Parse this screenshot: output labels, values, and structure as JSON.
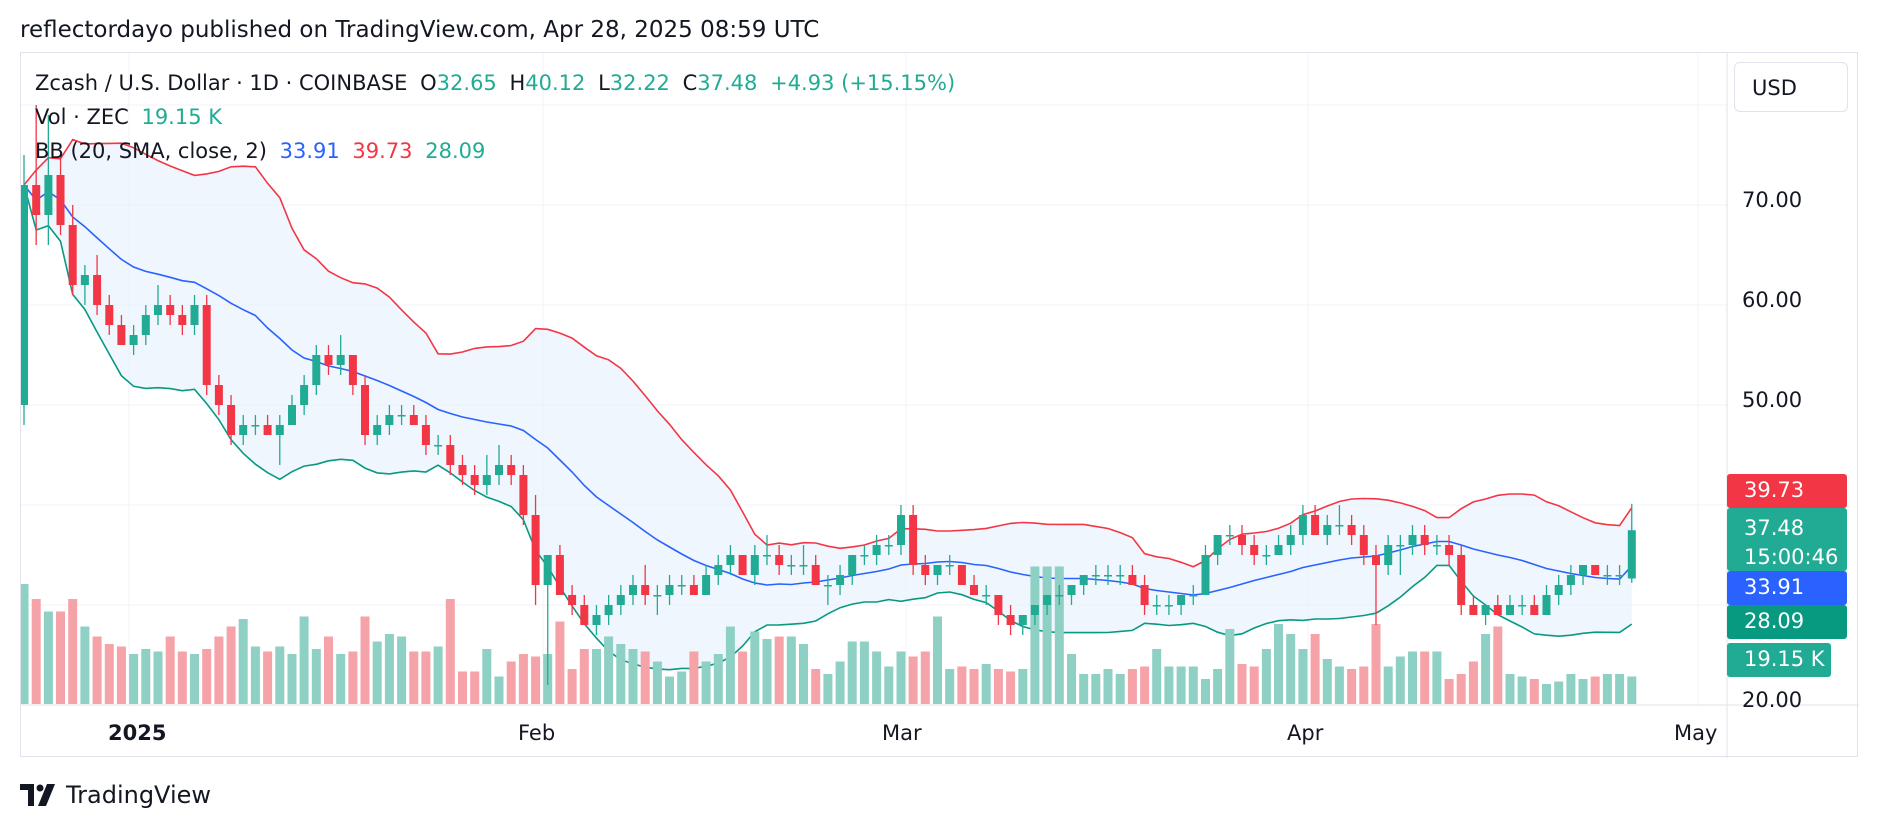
{
  "attribution": "reflectordayo published on TradingView.com, Apr 28, 2025 08:59 UTC",
  "brand": "TradingView",
  "currency_button": "USD",
  "legend": {
    "symbol": "Zcash / U.S. Dollar · 1D · COINBASE",
    "o_label": "O",
    "o": "32.65",
    "h_label": "H",
    "h": "40.12",
    "l_label": "L",
    "l": "32.22",
    "c_label": "C",
    "c": "37.48",
    "change": "+4.93 (+15.15%)",
    "vol_label": "Vol · ZEC",
    "vol": "19.15 K",
    "bb_label": "BB (20, SMA, close, 2)",
    "bb_basis": "33.91",
    "bb_upper": "39.73",
    "bb_lower": "28.09"
  },
  "price_axis": [
    "70.00",
    "60.00",
    "50.00",
    "20.00"
  ],
  "price_tags": {
    "upper": "39.73",
    "last_price": "37.48",
    "countdown": "15:00:46",
    "basis": "33.91",
    "lower": "28.09",
    "volume": "19.15 K"
  },
  "time_axis": [
    "2025",
    "Feb",
    "Mar",
    "Apr",
    "May"
  ],
  "colors": {
    "up": "#22ab94",
    "down": "#f23645",
    "basis": "#2962ff",
    "band_fill": "#e3eefb",
    "vol_up": "#8fd0c5",
    "vol_down": "#f5a2a8"
  },
  "chart_data": {
    "type": "candlestick",
    "ylim": [
      20,
      77
    ],
    "start_date": "2024-12-16",
    "candles": [
      {
        "o": 50,
        "h": 75,
        "l": 48,
        "c": 72
      },
      {
        "o": 72,
        "h": 80,
        "l": 66,
        "c": 69
      },
      {
        "o": 69,
        "h": 79,
        "l": 66,
        "c": 73
      },
      {
        "o": 73,
        "h": 75,
        "l": 67,
        "c": 68
      },
      {
        "o": 68,
        "h": 70,
        "l": 61,
        "c": 62
      },
      {
        "o": 62,
        "h": 64,
        "l": 60,
        "c": 63
      },
      {
        "o": 63,
        "h": 65,
        "l": 59,
        "c": 60
      },
      {
        "o": 60,
        "h": 61,
        "l": 57,
        "c": 58
      },
      {
        "o": 58,
        "h": 59,
        "l": 56,
        "c": 56
      },
      {
        "o": 56,
        "h": 58,
        "l": 55,
        "c": 57
      },
      {
        "o": 57,
        "h": 60,
        "l": 56,
        "c": 59
      },
      {
        "o": 59,
        "h": 62,
        "l": 58,
        "c": 60
      },
      {
        "o": 60,
        "h": 61,
        "l": 58,
        "c": 59
      },
      {
        "o": 59,
        "h": 60,
        "l": 57,
        "c": 58
      },
      {
        "o": 58,
        "h": 61,
        "l": 57,
        "c": 60
      },
      {
        "o": 60,
        "h": 61,
        "l": 51,
        "c": 52
      },
      {
        "o": 52,
        "h": 53,
        "l": 49,
        "c": 50
      },
      {
        "o": 50,
        "h": 51,
        "l": 46,
        "c": 47
      },
      {
        "o": 47,
        "h": 49,
        "l": 46,
        "c": 48
      },
      {
        "o": 48,
        "h": 49,
        "l": 47,
        "c": 48
      },
      {
        "o": 48,
        "h": 49,
        "l": 47,
        "c": 47
      },
      {
        "o": 47,
        "h": 49,
        "l": 44,
        "c": 48
      },
      {
        "o": 48,
        "h": 51,
        "l": 48,
        "c": 50
      },
      {
        "o": 50,
        "h": 53,
        "l": 49,
        "c": 52
      },
      {
        "o": 52,
        "h": 56,
        "l": 51,
        "c": 55
      },
      {
        "o": 55,
        "h": 56,
        "l": 53,
        "c": 54
      },
      {
        "o": 54,
        "h": 57,
        "l": 53,
        "c": 55
      },
      {
        "o": 55,
        "h": 55,
        "l": 51,
        "c": 52
      },
      {
        "o": 52,
        "h": 53,
        "l": 46,
        "c": 47
      },
      {
        "o": 47,
        "h": 49,
        "l": 46,
        "c": 48
      },
      {
        "o": 48,
        "h": 50,
        "l": 47,
        "c": 49
      },
      {
        "o": 49,
        "h": 50,
        "l": 48,
        "c": 49
      },
      {
        "o": 49,
        "h": 50,
        "l": 48,
        "c": 48
      },
      {
        "o": 48,
        "h": 49,
        "l": 45,
        "c": 46
      },
      {
        "o": 46,
        "h": 47,
        "l": 45,
        "c": 46
      },
      {
        "o": 46,
        "h": 47,
        "l": 43,
        "c": 44
      },
      {
        "o": 44,
        "h": 45,
        "l": 42,
        "c": 43
      },
      {
        "o": 43,
        "h": 44,
        "l": 41,
        "c": 42
      },
      {
        "o": 42,
        "h": 45,
        "l": 41,
        "c": 43
      },
      {
        "o": 43,
        "h": 46,
        "l": 42,
        "c": 44
      },
      {
        "o": 44,
        "h": 45,
        "l": 42,
        "c": 43
      },
      {
        "o": 43,
        "h": 44,
        "l": 38,
        "c": 39
      },
      {
        "o": 39,
        "h": 41,
        "l": 30,
        "c": 32
      },
      {
        "o": 32,
        "h": 35,
        "l": 22,
        "c": 35
      },
      {
        "o": 35,
        "h": 36,
        "l": 31,
        "c": 31
      },
      {
        "o": 31,
        "h": 32,
        "l": 29,
        "c": 30
      },
      {
        "o": 30,
        "h": 31,
        "l": 28,
        "c": 28
      },
      {
        "o": 28,
        "h": 30,
        "l": 27,
        "c": 29
      },
      {
        "o": 29,
        "h": 31,
        "l": 28,
        "c": 30
      },
      {
        "o": 30,
        "h": 32,
        "l": 29,
        "c": 31
      },
      {
        "o": 31,
        "h": 33,
        "l": 30,
        "c": 32
      },
      {
        "o": 32,
        "h": 34,
        "l": 30,
        "c": 31
      },
      {
        "o": 31,
        "h": 32,
        "l": 29,
        "c": 31
      },
      {
        "o": 31,
        "h": 33,
        "l": 30,
        "c": 32
      },
      {
        "o": 32,
        "h": 33,
        "l": 31,
        "c": 32
      },
      {
        "o": 32,
        "h": 33,
        "l": 31,
        "c": 31
      },
      {
        "o": 31,
        "h": 34,
        "l": 31,
        "c": 33
      },
      {
        "o": 33,
        "h": 35,
        "l": 32,
        "c": 34
      },
      {
        "o": 34,
        "h": 36,
        "l": 33,
        "c": 35
      },
      {
        "o": 35,
        "h": 35,
        "l": 33,
        "c": 33
      },
      {
        "o": 33,
        "h": 36,
        "l": 32,
        "c": 35
      },
      {
        "o": 35,
        "h": 37,
        "l": 34,
        "c": 35
      },
      {
        "o": 35,
        "h": 36,
        "l": 33,
        "c": 34
      },
      {
        "o": 34,
        "h": 35,
        "l": 33,
        "c": 34
      },
      {
        "o": 34,
        "h": 36,
        "l": 33,
        "c": 34
      },
      {
        "o": 34,
        "h": 35,
        "l": 32,
        "c": 32
      },
      {
        "o": 32,
        "h": 33,
        "l": 30,
        "c": 32
      },
      {
        "o": 32,
        "h": 34,
        "l": 31,
        "c": 33
      },
      {
        "o": 33,
        "h": 35,
        "l": 32,
        "c": 35
      },
      {
        "o": 35,
        "h": 36,
        "l": 34,
        "c": 35
      },
      {
        "o": 35,
        "h": 37,
        "l": 34,
        "c": 36
      },
      {
        "o": 36,
        "h": 37,
        "l": 35,
        "c": 36
      },
      {
        "o": 36,
        "h": 40,
        "l": 35,
        "c": 39
      },
      {
        "o": 39,
        "h": 40,
        "l": 33,
        "c": 34
      },
      {
        "o": 34,
        "h": 35,
        "l": 32,
        "c": 33
      },
      {
        "o": 33,
        "h": 34,
        "l": 32,
        "c": 34
      },
      {
        "o": 34,
        "h": 35,
        "l": 33,
        "c": 34
      },
      {
        "o": 34,
        "h": 34,
        "l": 32,
        "c": 32
      },
      {
        "o": 32,
        "h": 33,
        "l": 31,
        "c": 31
      },
      {
        "o": 31,
        "h": 32,
        "l": 30,
        "c": 31
      },
      {
        "o": 31,
        "h": 31,
        "l": 28,
        "c": 29
      },
      {
        "o": 29,
        "h": 30,
        "l": 27,
        "c": 28
      },
      {
        "o": 28,
        "h": 29,
        "l": 27,
        "c": 29
      },
      {
        "o": 29,
        "h": 30,
        "l": 28,
        "c": 30
      },
      {
        "o": 30,
        "h": 31,
        "l": 29,
        "c": 31
      },
      {
        "o": 31,
        "h": 32,
        "l": 30,
        "c": 31
      },
      {
        "o": 31,
        "h": 32,
        "l": 30,
        "c": 32
      },
      {
        "o": 32,
        "h": 33,
        "l": 31,
        "c": 33
      },
      {
        "o": 33,
        "h": 34,
        "l": 32,
        "c": 33
      },
      {
        "o": 33,
        "h": 34,
        "l": 32,
        "c": 33
      },
      {
        "o": 33,
        "h": 34,
        "l": 32,
        "c": 33
      },
      {
        "o": 33,
        "h": 34,
        "l": 32,
        "c": 32
      },
      {
        "o": 32,
        "h": 33,
        "l": 29,
        "c": 30
      },
      {
        "o": 30,
        "h": 31,
        "l": 29,
        "c": 30
      },
      {
        "o": 30,
        "h": 31,
        "l": 29,
        "c": 30
      },
      {
        "o": 30,
        "h": 31,
        "l": 29,
        "c": 31
      },
      {
        "o": 31,
        "h": 32,
        "l": 30,
        "c": 31
      },
      {
        "o": 31,
        "h": 36,
        "l": 31,
        "c": 35
      },
      {
        "o": 35,
        "h": 37,
        "l": 34,
        "c": 37
      },
      {
        "o": 37,
        "h": 38,
        "l": 36,
        "c": 37
      },
      {
        "o": 37,
        "h": 38,
        "l": 35,
        "c": 36
      },
      {
        "o": 36,
        "h": 37,
        "l": 34,
        "c": 35
      },
      {
        "o": 35,
        "h": 36,
        "l": 34,
        "c": 35
      },
      {
        "o": 35,
        "h": 37,
        "l": 35,
        "c": 36
      },
      {
        "o": 36,
        "h": 38,
        "l": 35,
        "c": 37
      },
      {
        "o": 37,
        "h": 40,
        "l": 36,
        "c": 39
      },
      {
        "o": 39,
        "h": 40,
        "l": 37,
        "c": 37
      },
      {
        "o": 37,
        "h": 39,
        "l": 36,
        "c": 38
      },
      {
        "o": 38,
        "h": 40,
        "l": 37,
        "c": 38
      },
      {
        "o": 38,
        "h": 39,
        "l": 36,
        "c": 37
      },
      {
        "o": 37,
        "h": 38,
        "l": 34,
        "c": 35
      },
      {
        "o": 35,
        "h": 36,
        "l": 28,
        "c": 34
      },
      {
        "o": 34,
        "h": 37,
        "l": 33,
        "c": 36
      },
      {
        "o": 36,
        "h": 37,
        "l": 33,
        "c": 36
      },
      {
        "o": 36,
        "h": 38,
        "l": 35,
        "c": 37
      },
      {
        "o": 37,
        "h": 38,
        "l": 35,
        "c": 36
      },
      {
        "o": 36,
        "h": 37,
        "l": 35,
        "c": 36
      },
      {
        "o": 36,
        "h": 37,
        "l": 34,
        "c": 35
      },
      {
        "o": 35,
        "h": 36,
        "l": 29,
        "c": 30
      },
      {
        "o": 30,
        "h": 31,
        "l": 29,
        "c": 29
      },
      {
        "o": 29,
        "h": 30,
        "l": 28,
        "c": 30
      },
      {
        "o": 30,
        "h": 31,
        "l": 29,
        "c": 29
      },
      {
        "o": 29,
        "h": 31,
        "l": 29,
        "c": 30
      },
      {
        "o": 30,
        "h": 31,
        "l": 29,
        "c": 30
      },
      {
        "o": 30,
        "h": 31,
        "l": 29,
        "c": 29
      },
      {
        "o": 29,
        "h": 32,
        "l": 29,
        "c": 31
      },
      {
        "o": 31,
        "h": 33,
        "l": 30,
        "c": 32
      },
      {
        "o": 32,
        "h": 34,
        "l": 31,
        "c": 33
      },
      {
        "o": 33,
        "h": 34,
        "l": 32,
        "c": 34
      },
      {
        "o": 34,
        "h": 34,
        "l": 33,
        "c": 33
      },
      {
        "o": 33,
        "h": 34,
        "l": 32,
        "c": 33
      },
      {
        "o": 33,
        "h": 34,
        "l": 32,
        "c": 33
      },
      {
        "o": 32.65,
        "h": 40.12,
        "l": 32.22,
        "c": 37.48
      }
    ],
    "volume_kzec": [
      48,
      42,
      37,
      37,
      42,
      31,
      27,
      24,
      23,
      20,
      22,
      21,
      27,
      21,
      20,
      22,
      27,
      31,
      34,
      23,
      21,
      23,
      20,
      35,
      22,
      27,
      20,
      21,
      35,
      25,
      28,
      27,
      21,
      21,
      23,
      42,
      13,
      13,
      22,
      11,
      17,
      20,
      19,
      20,
      33,
      14,
      22,
      22,
      27,
      24,
      22,
      21,
      17,
      11,
      13,
      21,
      17,
      20,
      31,
      21,
      29,
      26,
      27,
      27,
      24,
      14,
      12,
      17,
      25,
      25,
      21,
      15,
      21,
      19,
      21,
      35,
      14,
      15,
      14,
      16,
      14,
      13,
      14,
      55,
      55,
      55,
      20,
      12,
      12,
      14,
      12,
      14,
      15,
      22,
      15,
      15,
      15,
      10,
      14,
      30,
      16,
      15,
      22,
      32,
      28,
      22,
      28,
      18,
      15,
      14,
      15,
      32,
      15,
      19,
      21,
      21,
      21,
      10,
      12,
      17,
      28,
      31,
      12,
      11,
      10,
      8,
      9,
      12,
      10,
      11,
      12,
      12,
      11,
      10,
      8,
      19.15
    ],
    "bb": {
      "period": 20,
      "multiplier": 2,
      "last_basis": 33.91,
      "last_upper": 39.73,
      "last_lower": 28.09
    }
  }
}
